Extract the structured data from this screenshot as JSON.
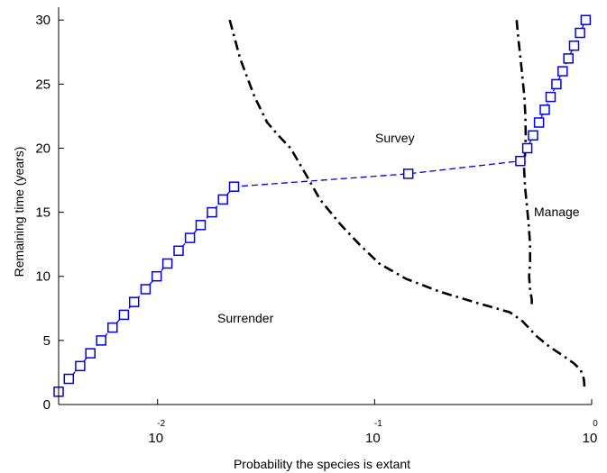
{
  "chart_data": {
    "type": "line",
    "title": "",
    "xlabel": "Probability the species is extant",
    "ylabel": "Remaining time (years)",
    "x_scale": "log",
    "xlim": [
      0.0035,
      1.0
    ],
    "ylim": [
      0,
      31
    ],
    "grid": false,
    "x_ticks": [
      {
        "base": "10",
        "exp": "-2",
        "value": 0.01
      },
      {
        "base": "10",
        "exp": "-1",
        "value": 0.1
      },
      {
        "base": "10",
        "exp": "0",
        "value": 1.0
      }
    ],
    "y_ticks": [
      0,
      5,
      10,
      15,
      20,
      25,
      30
    ],
    "region_labels": [
      "Survey",
      "Manage",
      "Surrender"
    ],
    "series": [
      {
        "color": "#0000ee",
        "style": "dashed",
        "marker": "square",
        "points": [
          [
            0.0035,
            1
          ],
          [
            0.0039,
            2
          ],
          [
            0.0044,
            3
          ],
          [
            0.0049,
            4
          ],
          [
            0.0055,
            5
          ],
          [
            0.0062,
            6
          ],
          [
            0.007,
            7
          ],
          [
            0.0078,
            8
          ],
          [
            0.0088,
            9
          ],
          [
            0.0099,
            10
          ],
          [
            0.0111,
            11
          ],
          [
            0.0125,
            12
          ],
          [
            0.0141,
            13
          ],
          [
            0.0158,
            14
          ],
          [
            0.0178,
            15
          ],
          [
            0.02,
            16
          ],
          [
            0.0225,
            17
          ],
          [
            0.143,
            18
          ],
          [
            0.469,
            19
          ],
          [
            0.505,
            20
          ],
          [
            0.537,
            21
          ],
          [
            0.572,
            22
          ],
          [
            0.608,
            23
          ],
          [
            0.647,
            24
          ],
          [
            0.688,
            25
          ],
          [
            0.735,
            26
          ],
          [
            0.781,
            27
          ],
          [
            0.83,
            28
          ],
          [
            0.884,
            29
          ],
          [
            0.939,
            30
          ]
        ]
      },
      {
        "color": "#000000",
        "style": "dashdot",
        "marker": "none",
        "points": [
          [
            0.0215,
            30
          ],
          [
            0.024,
            27
          ],
          [
            0.028,
            24
          ],
          [
            0.032,
            22
          ],
          [
            0.036,
            21
          ],
          [
            0.041,
            20
          ],
          [
            0.048,
            18
          ],
          [
            0.056,
            16
          ],
          [
            0.07,
            14
          ],
          [
            0.085,
            12.5
          ],
          [
            0.105,
            11
          ],
          [
            0.14,
            9.8
          ],
          [
            0.2,
            8.8
          ],
          [
            0.3,
            7.9
          ],
          [
            0.42,
            7.2
          ],
          [
            0.48,
            6.5
          ],
          [
            0.56,
            5.3
          ],
          [
            0.64,
            4.5
          ],
          [
            0.74,
            3.8
          ],
          [
            0.83,
            3.2
          ],
          [
            0.89,
            2.7
          ],
          [
            0.92,
            2.0
          ],
          [
            0.925,
            1.5
          ],
          [
            0.92,
            1.1
          ]
        ]
      },
      {
        "color": "#000000",
        "style": "dashdot",
        "marker": "none",
        "points": [
          [
            0.451,
            30
          ],
          [
            0.46,
            28.5
          ],
          [
            0.47,
            27
          ],
          [
            0.48,
            25.5
          ],
          [
            0.49,
            24
          ],
          [
            0.495,
            22.5
          ],
          [
            0.497,
            21
          ],
          [
            0.493,
            19.5
          ],
          [
            0.488,
            18.5
          ],
          [
            0.493,
            17
          ],
          [
            0.503,
            15.5
          ],
          [
            0.513,
            14
          ],
          [
            0.52,
            12.5
          ],
          [
            0.52,
            11
          ],
          [
            0.515,
            10
          ],
          [
            0.52,
            9
          ],
          [
            0.53,
            8.2
          ],
          [
            0.53,
            7.6
          ]
        ]
      }
    ]
  }
}
